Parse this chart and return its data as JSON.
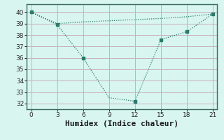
{
  "line1_x": [
    0,
    3,
    6,
    9,
    12,
    15,
    18,
    21
  ],
  "line1_y": [
    40.0,
    39.0,
    39.15,
    39.25,
    39.35,
    39.45,
    39.6,
    39.85
  ],
  "line2_x": [
    0,
    3,
    6,
    9,
    12,
    15,
    18,
    21
  ],
  "line2_y": [
    40.0,
    38.9,
    36.0,
    32.5,
    32.2,
    37.6,
    38.3,
    39.85
  ],
  "line_color": "#2a7a6a",
  "bg_color": "#d8f5f0",
  "grid_color": "#c8b0c0",
  "xlabel": "Humidex (Indice chaleur)",
  "xlim": [
    -0.5,
    21.5
  ],
  "ylim": [
    31.5,
    40.7
  ],
  "xticks": [
    0,
    3,
    6,
    9,
    12,
    15,
    18,
    21
  ],
  "yticks": [
    32,
    33,
    34,
    35,
    36,
    37,
    38,
    39,
    40
  ],
  "tick_fontsize": 6.5,
  "xlabel_fontsize": 8,
  "marker_indices": [
    1,
    2,
    4,
    5,
    6,
    7
  ]
}
